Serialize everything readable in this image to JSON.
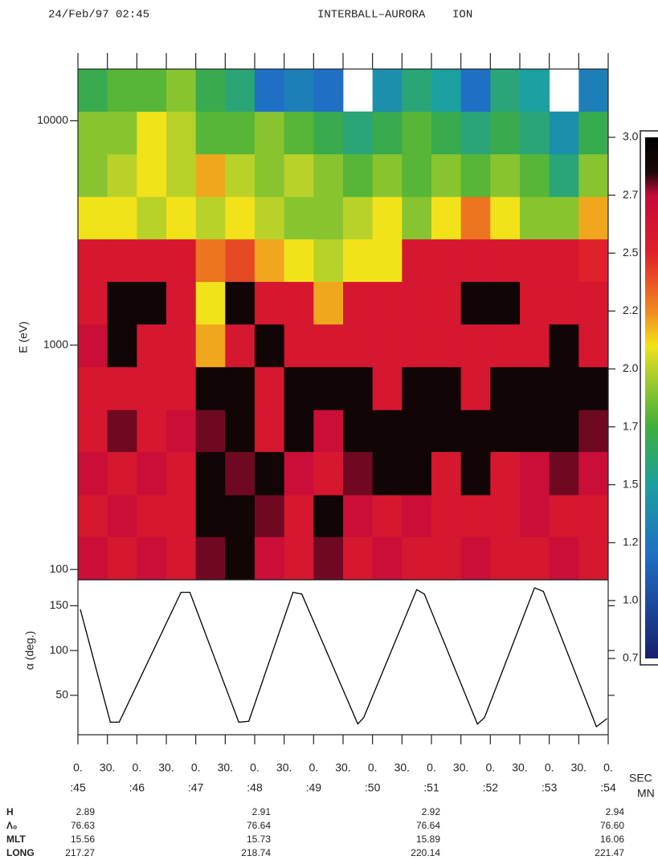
{
  "header": {
    "date": "24/Feb/97 02:45",
    "title": "INTERBALL–AURORA    ION"
  },
  "chart_data": [
    {
      "type": "heatmap",
      "ylabel": "E (eV)",
      "ylog": true,
      "x_edges": [
        45,
        45.5,
        46,
        46.5,
        47,
        47.5,
        48,
        48.5,
        49,
        49.5,
        50,
        50.5,
        51,
        51.5,
        52,
        52.5,
        53,
        53.5,
        54
      ],
      "y_edges": [
        90,
        140,
        215,
        335,
        515,
        800,
        1240,
        1920,
        2970,
        4590,
        7110,
        11000,
        17000
      ],
      "z": [
        [
          2.7,
          2.6,
          2.7,
          2.6,
          2.8,
          2.9,
          2.7,
          2.6,
          2.8,
          2.6,
          2.7,
          2.6,
          2.6,
          2.7,
          2.6,
          2.6,
          2.7,
          2.6
        ],
        [
          2.6,
          2.7,
          2.6,
          2.6,
          2.9,
          2.9,
          2.8,
          2.6,
          2.9,
          2.7,
          2.6,
          2.7,
          2.6,
          2.6,
          2.6,
          2.7,
          2.6,
          2.6
        ],
        [
          2.7,
          2.6,
          2.7,
          2.6,
          2.9,
          2.8,
          2.9,
          2.7,
          2.6,
          2.8,
          2.9,
          2.9,
          2.6,
          2.9,
          2.6,
          2.7,
          2.8,
          2.7
        ],
        [
          2.6,
          2.8,
          2.6,
          2.7,
          2.8,
          2.9,
          2.6,
          2.9,
          2.7,
          2.9,
          2.9,
          2.9,
          2.9,
          2.9,
          2.9,
          2.9,
          2.9,
          2.8
        ],
        [
          2.6,
          2.6,
          2.6,
          2.6,
          2.9,
          2.9,
          2.6,
          2.9,
          2.9,
          2.9,
          2.6,
          2.9,
          2.9,
          2.6,
          2.9,
          2.9,
          2.9,
          2.9
        ],
        [
          2.7,
          2.9,
          2.6,
          2.6,
          2.2,
          2.6,
          2.9,
          2.6,
          2.6,
          2.6,
          2.6,
          2.6,
          2.6,
          2.6,
          2.6,
          2.6,
          2.9,
          2.6
        ],
        [
          2.6,
          2.9,
          2.9,
          2.6,
          2.1,
          2.9,
          2.6,
          2.6,
          2.2,
          2.6,
          2.6,
          2.6,
          2.6,
          2.9,
          2.9,
          2.6,
          2.6,
          2.6
        ],
        [
          2.6,
          2.6,
          2.6,
          2.6,
          2.3,
          2.4,
          2.2,
          2.1,
          2.0,
          2.1,
          2.1,
          2.6,
          2.6,
          2.6,
          2.6,
          2.6,
          2.6,
          2.5
        ],
        [
          2.1,
          2.1,
          2.0,
          2.1,
          2.0,
          2.1,
          2.0,
          1.9,
          1.9,
          2.0,
          2.1,
          1.9,
          2.1,
          2.3,
          2.1,
          1.9,
          1.9,
          2.2
        ],
        [
          1.9,
          2.0,
          2.1,
          2.0,
          2.2,
          2.0,
          1.9,
          2.0,
          1.9,
          1.8,
          1.9,
          1.8,
          1.9,
          1.8,
          1.9,
          1.8,
          1.6,
          1.9
        ],
        [
          1.9,
          1.9,
          2.1,
          2.0,
          1.8,
          1.8,
          1.9,
          1.8,
          1.7,
          1.6,
          1.7,
          1.8,
          1.7,
          1.6,
          1.7,
          1.6,
          1.4,
          1.7
        ],
        [
          1.7,
          1.8,
          1.8,
          1.9,
          1.7,
          1.6,
          1.2,
          1.3,
          1.2,
          null,
          1.4,
          1.6,
          1.5,
          1.2,
          1.6,
          1.5,
          null,
          1.3
        ]
      ],
      "xlim": [
        45,
        54
      ],
      "ylim": [
        90,
        17000
      ],
      "yticks": [
        100,
        1000,
        10000
      ],
      "zlim": [
        0.75,
        3
      ],
      "zticks": [
        {
          "value": 3,
          "label": "3.0"
        },
        {
          "value": 2.75,
          "label": "2.7"
        },
        {
          "value": 2.5,
          "label": "2.5"
        },
        {
          "value": 2.25,
          "label": "2.2"
        },
        {
          "value": 2,
          "label": "2.0"
        },
        {
          "value": 1.75,
          "label": "1.7"
        },
        {
          "value": 1.5,
          "label": "1.5"
        },
        {
          "value": 1.25,
          "label": "1.2"
        },
        {
          "value": 1,
          "label": "1.0"
        },
        {
          "value": 0.75,
          "label": "0.7"
        }
      ],
      "colorscale": [
        [
          0.75,
          "#1a1f6e"
        ],
        [
          1.2,
          "#1f6fc4"
        ],
        [
          1.5,
          "#1b9fa0"
        ],
        [
          1.75,
          "#3fae3a"
        ],
        [
          2.0,
          "#b9d22a"
        ],
        [
          2.1,
          "#f2e21a"
        ],
        [
          2.25,
          "#f08a1e"
        ],
        [
          2.5,
          "#e0202a"
        ],
        [
          2.75,
          "#c40a3a"
        ],
        [
          2.85,
          "#1a0808"
        ],
        [
          3,
          "#000000"
        ]
      ]
    },
    {
      "type": "line",
      "ylabel": "α (deg.)",
      "color": "#000000",
      "x": [
        45.04,
        45.55,
        45.7,
        46.75,
        46.9,
        47.73,
        47.9,
        48.65,
        48.8,
        49.75,
        49.85,
        50.75,
        50.88,
        51.78,
        51.9,
        52.75,
        52.9,
        53.8,
        53.98
      ],
      "values": [
        146,
        20,
        20,
        165,
        165,
        20,
        21,
        165,
        163,
        18,
        25,
        168,
        163,
        18,
        25,
        170,
        166,
        15,
        24
      ],
      "xlim": [
        45,
        54
      ],
      "ylim": [
        6,
        179
      ],
      "yticks": [
        50,
        100,
        150
      ],
      "xticks": [
        {
          "value": 45,
          "label": "0."
        },
        {
          "value": 45.5,
          "label": "30."
        },
        {
          "value": 46,
          "label": "0."
        },
        {
          "value": 46.5,
          "label": "30."
        },
        {
          "value": 47,
          "label": "0."
        },
        {
          "value": 47.5,
          "label": "30."
        },
        {
          "value": 48,
          "label": "0."
        },
        {
          "value": 48.5,
          "label": "30."
        },
        {
          "value": 49,
          "label": "0."
        },
        {
          "value": 49.5,
          "label": "30."
        },
        {
          "value": 50,
          "label": "0."
        },
        {
          "value": 50.5,
          "label": "30."
        },
        {
          "value": 51,
          "label": "0."
        },
        {
          "value": 51.5,
          "label": "30."
        },
        {
          "value": 52,
          "label": "0."
        },
        {
          "value": 52.5,
          "label": "30."
        },
        {
          "value": 53,
          "label": "0."
        },
        {
          "value": 53.5,
          "label": "30."
        },
        {
          "value": 54,
          "label": "0."
        }
      ],
      "minute_ticks": [
        {
          "value": 45,
          "label": ":45"
        },
        {
          "value": 46,
          "label": ":46"
        },
        {
          "value": 47,
          "label": ":47"
        },
        {
          "value": 48,
          "label": ":48"
        },
        {
          "value": 49,
          "label": ":49"
        },
        {
          "value": 50,
          "label": ":50"
        },
        {
          "value": 51,
          "label": ":51"
        },
        {
          "value": 52,
          "label": ":52"
        },
        {
          "value": 53,
          "label": ":53"
        },
        {
          "value": 54,
          "label": ":54"
        }
      ],
      "xlabel_sec": "SEC",
      "xlabel_min": "MN"
    }
  ],
  "ephemeris": {
    "rows": [
      {
        "label": "H",
        "values": [
          "2.89",
          "2.91",
          "2.92",
          "2.94"
        ]
      },
      {
        "label": "Λ₀",
        "values": [
          "76.63",
          "76.64",
          "76.64",
          "76.60"
        ]
      },
      {
        "label": "MLT",
        "values": [
          "15.56",
          "15.73",
          "15.89",
          "16.06"
        ]
      },
      {
        "label": "LONG",
        "values": [
          "217.27",
          "218.74",
          "220.14",
          "221.47"
        ]
      }
    ]
  }
}
